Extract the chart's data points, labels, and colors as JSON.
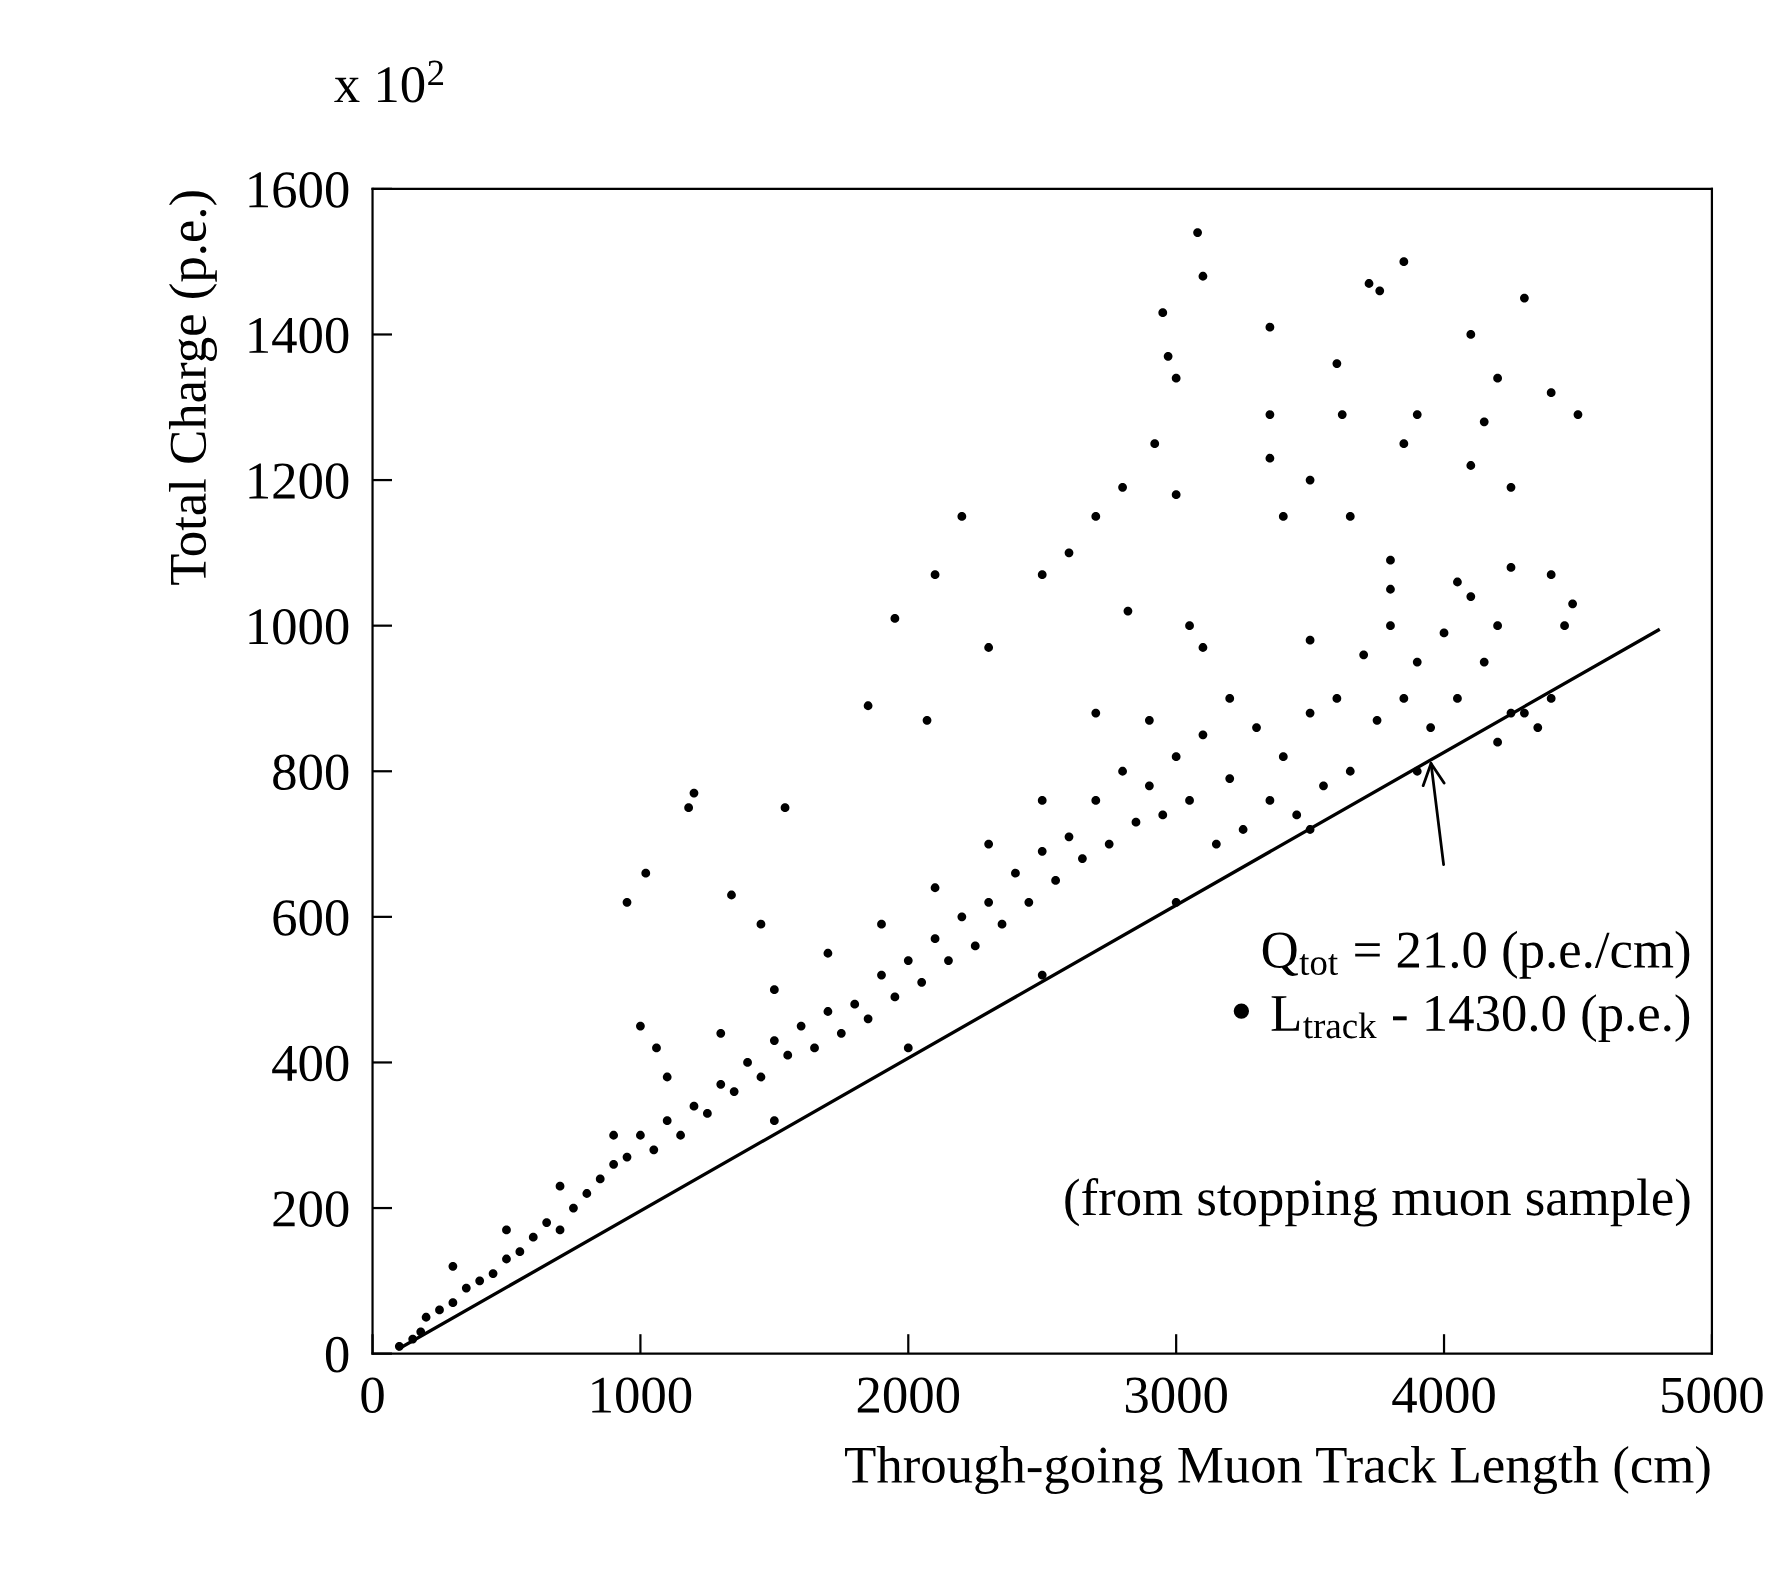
{
  "chart_data": {
    "type": "scatter",
    "xlabel": "Through-going Muon Track Length (cm)",
    "ylabel": "Total Charge (p.e.)",
    "xlim": [
      0,
      5000
    ],
    "xticks": [
      0,
      1000,
      2000,
      3000,
      4000,
      5000
    ],
    "ylim": [
      0,
      1600
    ],
    "yticks": [
      0,
      200,
      400,
      600,
      800,
      1000,
      1200,
      1400,
      1600
    ],
    "grid": false,
    "legend": false,
    "annotations": [
      "x 10$^{2}$",
      {
        "text": "Q$_{tot}$ = 21.0 (p.e./cm)\n• L$_{track}$ - 1430.0 (p.e.)",
        "x": 3950,
        "y": 815
      },
      "(from stopping muon sample)"
    ],
    "series": [
      {
        "color": "#000000",
        "marker": "circle",
        "x": [
          3080,
          3100,
          2950,
          2970,
          3000,
          3350,
          3720,
          3850,
          3760,
          4100,
          4300,
          3600,
          3900,
          4150,
          3350,
          3620,
          4200,
          4400,
          4500,
          2920,
          3000,
          2800,
          2200,
          2100,
          2500,
          2600,
          1950,
          3350,
          3850,
          4100,
          3400,
          3650,
          3800,
          4250,
          3500,
          2700,
          2820,
          3100,
          3050,
          2300,
          1200,
          1180,
          950,
          1020,
          1540,
          1850,
          2070,
          1340,
          1450,
          1000,
          1060,
          4400,
          4480,
          4250,
          100,
          150,
          180,
          200,
          250,
          300,
          350,
          400,
          450,
          500,
          550,
          600,
          650,
          700,
          750,
          800,
          850,
          900,
          950,
          1000,
          1050,
          1100,
          1150,
          1200,
          1250,
          1300,
          1350,
          1400,
          1450,
          1500,
          1550,
          1600,
          1650,
          1700,
          1750,
          1800,
          1850,
          1900,
          1950,
          2000,
          2050,
          2100,
          2150,
          2200,
          2250,
          2300,
          2350,
          2400,
          2450,
          2500,
          2550,
          2600,
          2650,
          2700,
          2750,
          2800,
          2850,
          2900,
          2950,
          3000,
          3050,
          3100,
          3150,
          3200,
          3250,
          3300,
          3350,
          3400,
          3450,
          3500,
          3550,
          3600,
          3650,
          3700,
          3750,
          3800,
          3850,
          3900,
          3950,
          4000,
          4050,
          4100,
          4150,
          4200,
          4250,
          4300,
          4350,
          4400,
          4450,
          300,
          500,
          700,
          900,
          1100,
          1300,
          1500,
          1700,
          1900,
          2100,
          2300,
          2500,
          2700,
          2900,
          3200,
          3500,
          3800,
          4050,
          1500,
          2000,
          2500,
          3000,
          3500,
          3900,
          4200
        ],
        "values": [
          1540,
          1480,
          1430,
          1370,
          1340,
          1410,
          1470,
          1500,
          1460,
          1400,
          1450,
          1360,
          1290,
          1280,
          1290,
          1290,
          1340,
          1320,
          1290,
          1250,
          1180,
          1190,
          1150,
          1070,
          1070,
          1100,
          1010,
          1230,
          1250,
          1220,
          1150,
          1150,
          1090,
          1190,
          1200,
          1150,
          1020,
          970,
          1000,
          970,
          770,
          750,
          620,
          660,
          750,
          890,
          870,
          630,
          590,
          450,
          420,
          1070,
          1030,
          1080,
          10,
          20,
          30,
          50,
          60,
          70,
          90,
          100,
          110,
          130,
          140,
          160,
          180,
          170,
          200,
          220,
          240,
          260,
          270,
          300,
          280,
          320,
          300,
          340,
          330,
          370,
          360,
          400,
          380,
          430,
          410,
          450,
          420,
          470,
          440,
          480,
          460,
          520,
          490,
          540,
          510,
          570,
          540,
          600,
          560,
          620,
          590,
          660,
          620,
          690,
          650,
          710,
          680,
          760,
          700,
          800,
          730,
          780,
          740,
          820,
          760,
          850,
          700,
          790,
          720,
          860,
          760,
          820,
          740,
          880,
          780,
          900,
          800,
          960,
          870,
          1000,
          900,
          950,
          860,
          990,
          900,
          1040,
          950,
          1000,
          880,
          880,
          860,
          900,
          1000,
          120,
          170,
          230,
          300,
          380,
          440,
          500,
          550,
          590,
          640,
          700,
          760,
          880,
          870,
          900,
          980,
          1050,
          1060,
          320,
          420,
          520,
          620,
          720,
          800,
          840
        ]
      },
      {
        "type": "line",
        "color": "#000000",
        "x": [
          100,
          4800
        ],
        "values": [
          7,
          994
        ]
      }
    ]
  }
}
